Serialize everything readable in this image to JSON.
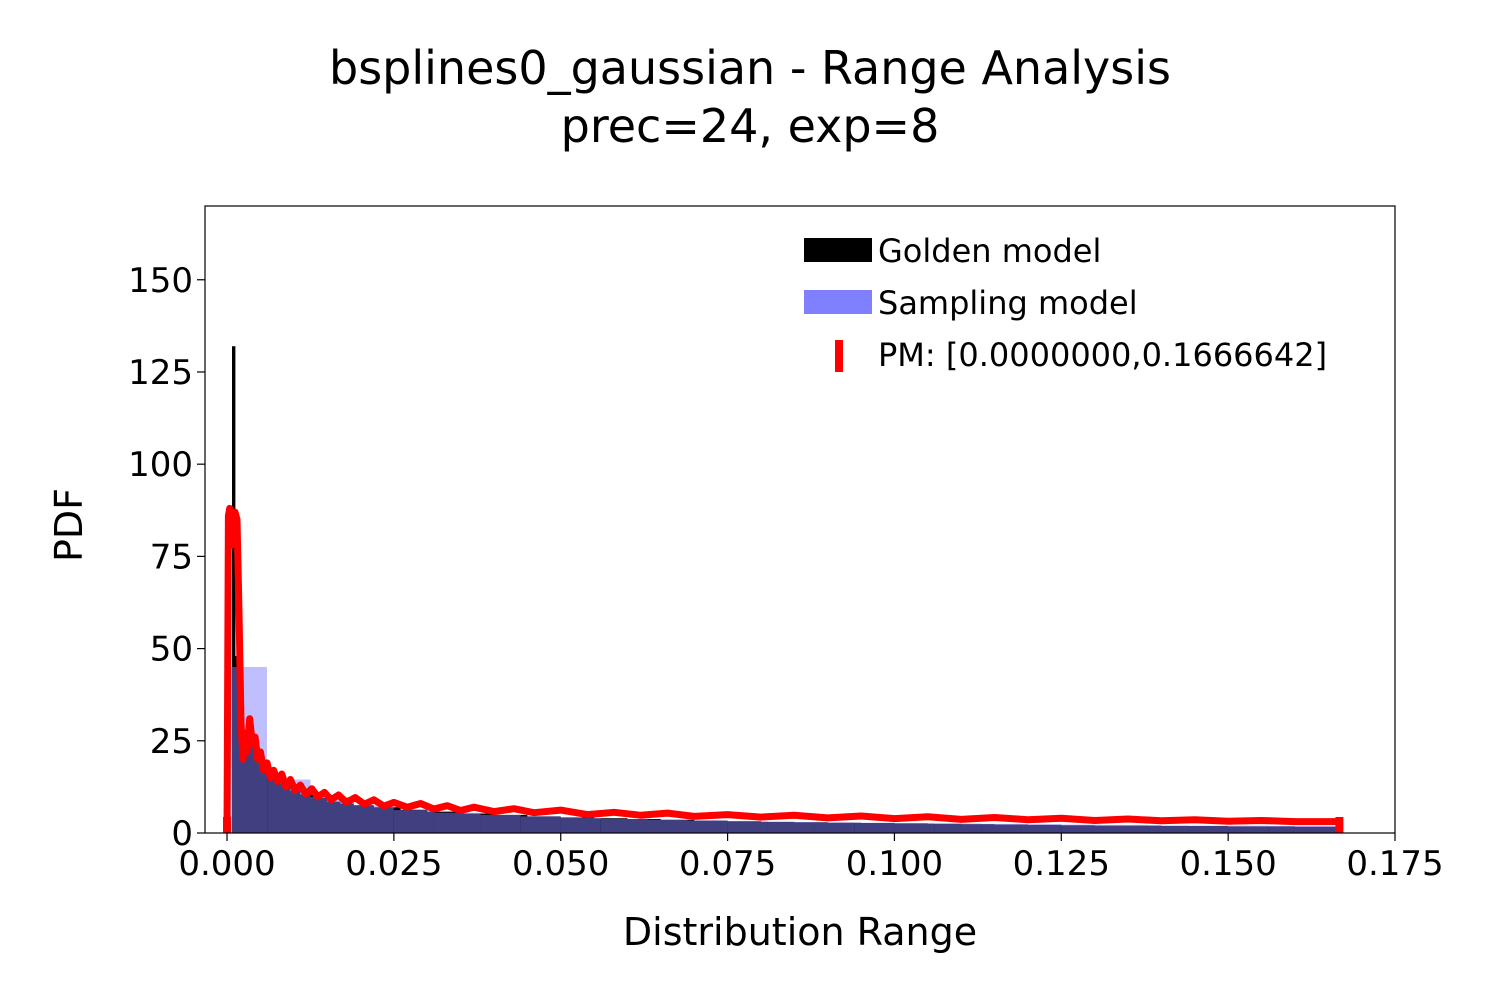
{
  "chart_data": {
    "type": "histogram",
    "title": "bsplines0_gaussian - Range Analysis",
    "subtitle": "prec=24, exp=8",
    "xlabel": "Distribution Range",
    "ylabel": "PDF",
    "xlim": [
      -0.0033,
      0.175
    ],
    "ylim": [
      0,
      170
    ],
    "xticks": [
      0.0,
      0.025,
      0.05,
      0.075,
      0.1,
      0.125,
      0.15,
      0.175
    ],
    "xtick_labels": [
      "0.000",
      "0.025",
      "0.050",
      "0.075",
      "0.100",
      "0.125",
      "0.150",
      "0.175"
    ],
    "yticks": [
      0,
      25,
      50,
      75,
      100,
      125,
      150
    ],
    "ytick_labels": [
      "0",
      "25",
      "50",
      "75",
      "100",
      "125",
      "150"
    ],
    "grid": false,
    "legend_position": "top-right",
    "pm_range": [
      0.0,
      0.1666642
    ],
    "series": [
      {
        "name": "Golden model",
        "kind": "histogram",
        "color": "#000000",
        "x": [
          0.00025,
          0.00075,
          0.00125,
          0.00175,
          0.0025,
          0.0035,
          0.0045,
          0.0055,
          0.0065,
          0.0075,
          0.0085,
          0.0095,
          0.011,
          0.013,
          0.015,
          0.017,
          0.019,
          0.022,
          0.026,
          0.03,
          0.035,
          0.04,
          0.045,
          0.05,
          0.055,
          0.06,
          0.065,
          0.07,
          0.075,
          0.08,
          0.085,
          0.09,
          0.095,
          0.1,
          0.105,
          0.11,
          0.115,
          0.12,
          0.125,
          0.13,
          0.135,
          0.14,
          0.145,
          0.15,
          0.155,
          0.16,
          0.1655
        ],
        "values": [
          0,
          132,
          48,
          38,
          28,
          24,
          20,
          17,
          15,
          13.5,
          12.5,
          11.5,
          10.5,
          9.5,
          8.5,
          8,
          7.5,
          7,
          6.3,
          5.8,
          5.3,
          4.9,
          4.5,
          4.2,
          4.0,
          3.8,
          3.6,
          3.4,
          3.2,
          3.0,
          2.9,
          2.8,
          2.7,
          2.6,
          2.5,
          2.4,
          2.3,
          2.2,
          2.1,
          2.0,
          2.0,
          1.9,
          1.9,
          1.8,
          1.8,
          1.7,
          1.7
        ]
      },
      {
        "name": "Sampling model",
        "kind": "histogram",
        "color": "#8080ff",
        "bins": [
          [
            0.0,
            0.006,
            45
          ],
          [
            0.006,
            0.0125,
            14.5
          ],
          [
            0.0125,
            0.019,
            9.8
          ],
          [
            0.019,
            0.025,
            7.5
          ],
          [
            0.025,
            0.031,
            6.2
          ],
          [
            0.031,
            0.038,
            5.5
          ],
          [
            0.038,
            0.044,
            4.9
          ],
          [
            0.044,
            0.05,
            4.5
          ],
          [
            0.05,
            0.056,
            4.1
          ],
          [
            0.056,
            0.063,
            3.8
          ],
          [
            0.063,
            0.069,
            3.6
          ],
          [
            0.069,
            0.075,
            3.4
          ],
          [
            0.075,
            0.081,
            3.2
          ],
          [
            0.081,
            0.088,
            3.0
          ],
          [
            0.088,
            0.094,
            2.9
          ],
          [
            0.094,
            0.1,
            2.8
          ],
          [
            0.1,
            0.106,
            2.7
          ],
          [
            0.106,
            0.113,
            2.6
          ],
          [
            0.113,
            0.119,
            2.5
          ],
          [
            0.119,
            0.125,
            2.4
          ],
          [
            0.125,
            0.131,
            2.3
          ],
          [
            0.131,
            0.138,
            2.2
          ],
          [
            0.138,
            0.144,
            2.1
          ],
          [
            0.144,
            0.15,
            2.0
          ],
          [
            0.15,
            0.156,
            2.0
          ],
          [
            0.156,
            0.1625,
            1.9
          ],
          [
            0.1625,
            0.1667,
            1.9
          ]
        ]
      },
      {
        "name": "PM: [0.0000000,0.1666642]",
        "kind": "line",
        "color": "#ff0000",
        "x": [
          0.0,
          0.0002,
          0.0004,
          0.0006,
          0.0009,
          0.0012,
          0.0015,
          0.0018,
          0.0021,
          0.0024,
          0.0027,
          0.003,
          0.0034,
          0.0038,
          0.0042,
          0.0046,
          0.005,
          0.0055,
          0.006,
          0.0065,
          0.007,
          0.0076,
          0.0082,
          0.0088,
          0.0095,
          0.0102,
          0.011,
          0.0118,
          0.0127,
          0.0136,
          0.0146,
          0.0156,
          0.0167,
          0.0179,
          0.0192,
          0.0206,
          0.022,
          0.0235,
          0.025,
          0.027,
          0.029,
          0.031,
          0.033,
          0.035,
          0.037,
          0.04,
          0.043,
          0.046,
          0.05,
          0.054,
          0.058,
          0.062,
          0.066,
          0.07,
          0.075,
          0.08,
          0.085,
          0.09,
          0.095,
          0.1,
          0.105,
          0.11,
          0.115,
          0.12,
          0.125,
          0.13,
          0.135,
          0.14,
          0.145,
          0.15,
          0.155,
          0.16,
          0.1666
        ],
        "y": [
          0,
          86,
          88,
          78,
          80,
          87,
          85,
          60,
          30,
          20,
          27,
          22,
          31,
          24,
          26,
          20,
          22,
          17,
          19,
          15,
          17,
          14,
          16,
          12.5,
          14.5,
          11.5,
          13,
          10.5,
          12,
          9.8,
          11,
          9,
          10.3,
          8.3,
          9.6,
          7.8,
          9,
          7.3,
          8.3,
          7,
          8,
          6.5,
          7.4,
          6.1,
          7.0,
          5.8,
          6.6,
          5.5,
          6.2,
          5.0,
          5.6,
          4.8,
          5.4,
          4.5,
          5.0,
          4.3,
          4.8,
          4.1,
          4.6,
          3.9,
          4.4,
          3.7,
          4.2,
          3.6,
          4.0,
          3.4,
          3.8,
          3.3,
          3.6,
          3.2,
          3.4,
          3.1,
          3.1
        ]
      }
    ]
  }
}
